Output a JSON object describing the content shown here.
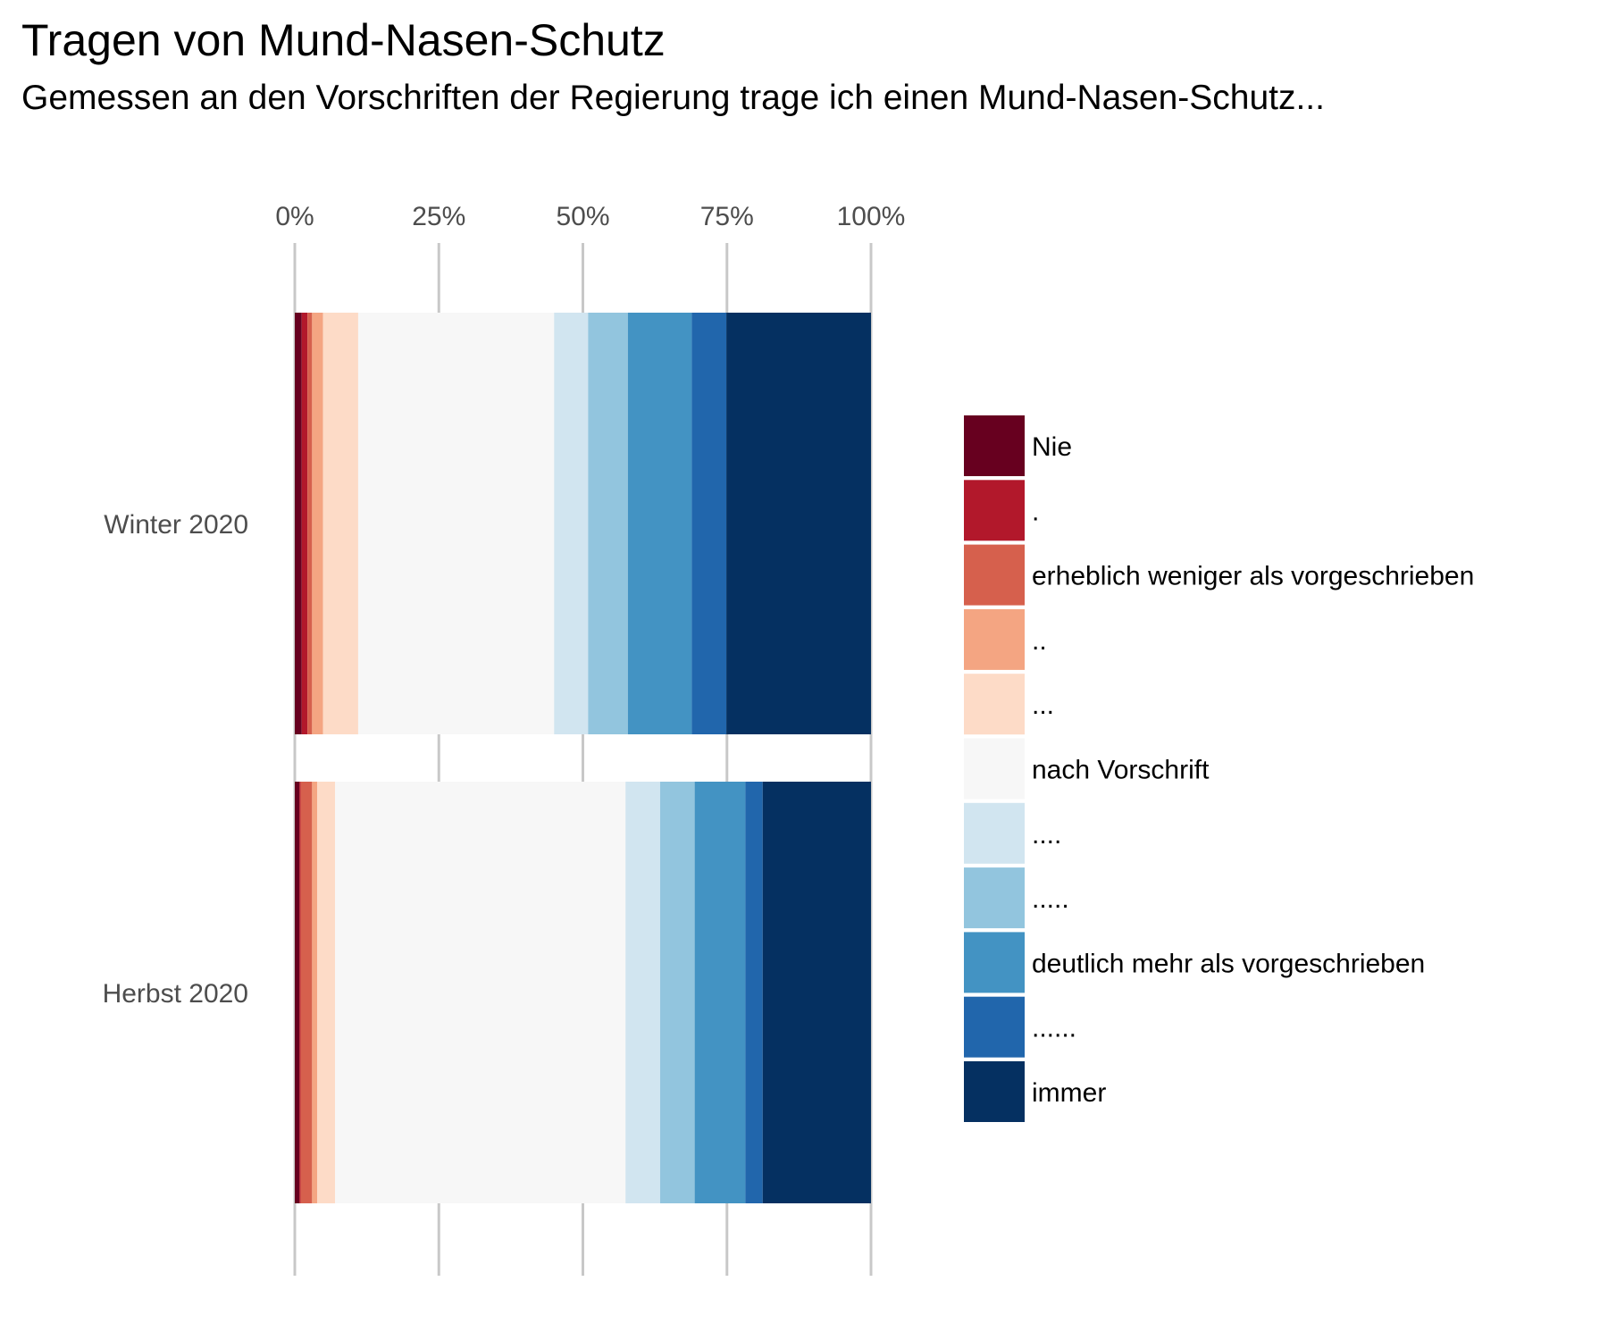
{
  "chart_data": {
    "type": "bar",
    "orientation": "horizontal",
    "stacked": true,
    "title": "Tragen von Mund-Nasen-Schutz",
    "subtitle": "Gemessen an den Vorschriften der Regierung trage ich einen Mund-Nasen-Schutz...",
    "categories": [
      "Winter 2020",
      "Herbst 2020"
    ],
    "xlim": [
      0,
      100
    ],
    "x_ticks": [
      "0%",
      "25%",
      "50%",
      "75%",
      "100%"
    ],
    "x_tick_values": [
      0,
      25,
      50,
      75,
      100
    ],
    "x_axis_position": "top",
    "grid": "vertical",
    "legend_position": "right",
    "series": [
      {
        "name": "Nie",
        "color": "#67001f",
        "values": [
          1.2,
          0.8
        ]
      },
      {
        "name": ".",
        "color": "#b2182b",
        "values": [
          1.0,
          0.2
        ]
      },
      {
        "name": "erheblich weniger als vorgeschrieben",
        "color": "#d6604d",
        "values": [
          0.8,
          2.0
        ]
      },
      {
        "name": "..",
        "color": "#f4a582",
        "values": [
          1.9,
          0.9
        ]
      },
      {
        "name": "...",
        "color": "#fddbc7",
        "values": [
          6.1,
          3.1
        ]
      },
      {
        "name": "nach Vorschrift",
        "color": "#f7f7f7",
        "values": [
          34.0,
          50.4
        ]
      },
      {
        "name": "....",
        "color": "#d1e5f0",
        "values": [
          5.9,
          6.0
        ]
      },
      {
        "name": ".....",
        "color": "#92c5de",
        "values": [
          6.9,
          6.0
        ]
      },
      {
        "name": "deutlich mehr als vorgeschrieben",
        "color": "#4393c3",
        "values": [
          11.1,
          8.8
        ]
      },
      {
        "name": "......",
        "color": "#2166ac",
        "values": [
          6.0,
          3.0
        ]
      },
      {
        "name": "immer",
        "color": "#053061",
        "values": [
          25.1,
          18.8
        ]
      }
    ]
  }
}
